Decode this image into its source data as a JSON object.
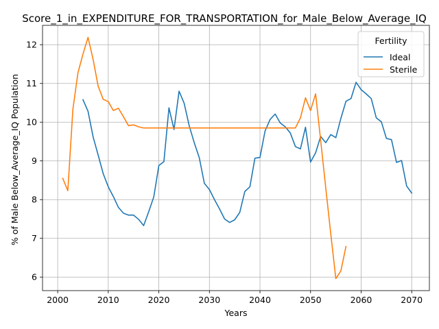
{
  "chart_data": {
    "type": "line",
    "title": "Score_1_in_EXPENDITURE_FOR_TRANSPORTATION_for_Male_Below_Average_IQ",
    "xlabel": "Years",
    "ylabel": "% of Male Below_Average_IQ Population",
    "xlim": [
      1997,
      2073.5
    ],
    "ylim": [
      5.65,
      12.5
    ],
    "xticks": [
      2000,
      2010,
      2020,
      2030,
      2040,
      2050,
      2060,
      2070
    ],
    "yticks": [
      6,
      7,
      8,
      9,
      10,
      11,
      12
    ],
    "grid": true,
    "legend": {
      "title": "Fertility",
      "placement": "top-right"
    },
    "series": [
      {
        "name": "Ideal",
        "color": "#1f77b4",
        "x": [
          2005,
          2006,
          2007,
          2008,
          2009,
          2010,
          2011,
          2012,
          2013,
          2014,
          2015,
          2016,
          2017,
          2018,
          2019,
          2020,
          2021,
          2022,
          2023,
          2024,
          2025,
          2026,
          2027,
          2028,
          2029,
          2030,
          2031,
          2032,
          2033,
          2034,
          2035,
          2036,
          2037,
          2038,
          2039,
          2040,
          2041,
          2042,
          2043,
          2044,
          2045,
          2046,
          2047,
          2048,
          2049,
          2050,
          2051,
          2052,
          2053,
          2054,
          2055,
          2056,
          2057,
          2058,
          2059,
          2060,
          2061,
          2062,
          2063,
          2064,
          2065,
          2066,
          2067,
          2068,
          2069,
          2070
        ],
        "y": [
          10.58,
          10.28,
          9.62,
          9.15,
          8.67,
          8.33,
          8.08,
          7.8,
          7.65,
          7.6,
          7.6,
          7.49,
          7.33,
          7.69,
          8.07,
          8.88,
          8.98,
          10.37,
          9.81,
          10.8,
          10.49,
          9.91,
          9.47,
          9.08,
          8.42,
          8.26,
          8.0,
          7.76,
          7.5,
          7.41,
          7.48,
          7.67,
          8.21,
          8.33,
          9.07,
          9.09,
          9.77,
          10.07,
          10.21,
          9.98,
          9.88,
          9.72,
          9.37,
          9.31,
          9.87,
          8.97,
          9.21,
          9.63,
          9.47,
          9.68,
          9.6,
          10.1,
          10.54,
          10.61,
          11.03,
          10.84,
          10.73,
          10.61,
          10.11,
          10.01,
          9.58,
          9.55,
          8.96,
          9.01,
          8.35,
          8.17
        ]
      },
      {
        "name": "Sterile",
        "color": "#ff7f0e",
        "x": [
          2001,
          2002,
          2003,
          2004,
          2005,
          2006,
          2007,
          2008,
          2009,
          2010,
          2011,
          2012,
          2013,
          2014,
          2015,
          2016,
          2017,
          2018,
          2019,
          2020,
          2021,
          2022,
          2023,
          2024,
          2025,
          2026,
          2027,
          2028,
          2029,
          2030,
          2031,
          2032,
          2033,
          2034,
          2035,
          2036,
          2037,
          2038,
          2039,
          2040,
          2041,
          2042,
          2043,
          2044,
          2045,
          2046,
          2047,
          2048,
          2049,
          2050,
          2051,
          2052,
          2053,
          2054,
          2055,
          2056,
          2057
        ],
        "y": [
          8.55,
          8.23,
          10.33,
          11.27,
          11.76,
          12.19,
          11.62,
          10.93,
          10.59,
          10.53,
          10.3,
          10.36,
          10.14,
          9.91,
          9.93,
          9.88,
          9.85,
          9.85,
          9.85,
          9.85,
          9.85,
          9.85,
          9.85,
          9.85,
          9.85,
          9.85,
          9.85,
          9.85,
          9.85,
          9.85,
          9.85,
          9.85,
          9.85,
          9.85,
          9.85,
          9.85,
          9.85,
          9.85,
          9.85,
          9.85,
          9.85,
          9.85,
          9.85,
          9.85,
          9.85,
          9.85,
          9.85,
          10.11,
          10.63,
          10.3,
          10.73,
          9.53,
          8.31,
          7.11,
          5.96,
          6.16,
          6.79
        ]
      }
    ]
  }
}
